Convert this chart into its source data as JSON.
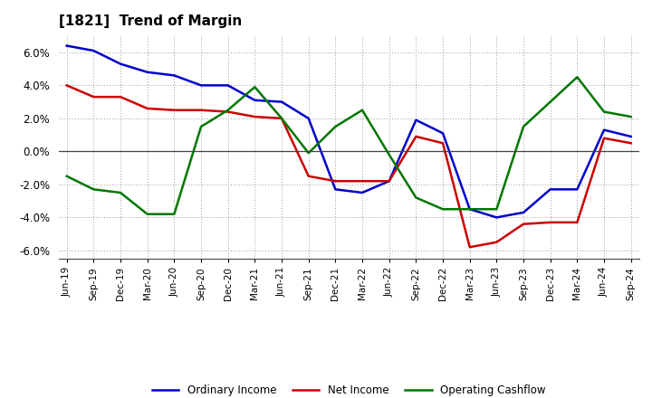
{
  "title": "[1821]  Trend of Margin",
  "labels": [
    "Jun-19",
    "Sep-19",
    "Dec-19",
    "Mar-20",
    "Jun-20",
    "Sep-20",
    "Dec-20",
    "Mar-21",
    "Jun-21",
    "Sep-21",
    "Dec-21",
    "Mar-22",
    "Jun-22",
    "Sep-22",
    "Dec-22",
    "Mar-23",
    "Jun-23",
    "Sep-23",
    "Dec-23",
    "Mar-24",
    "Jun-24",
    "Sep-24"
  ],
  "ordinary_income": [
    6.4,
    6.1,
    5.3,
    4.8,
    4.6,
    4.0,
    4.0,
    3.1,
    3.0,
    2.0,
    -2.3,
    -2.5,
    -1.8,
    1.9,
    1.1,
    -3.5,
    -4.0,
    -3.7,
    -2.3,
    -2.3,
    1.3,
    0.9
  ],
  "net_income": [
    4.0,
    3.3,
    3.3,
    2.6,
    2.5,
    2.5,
    2.4,
    2.1,
    2.0,
    -1.5,
    -1.8,
    -1.8,
    -1.8,
    0.9,
    0.5,
    -5.8,
    -5.5,
    -4.4,
    -4.3,
    -4.3,
    0.8,
    0.5
  ],
  "operating_cf": [
    -1.5,
    -2.3,
    -2.5,
    -3.8,
    -3.8,
    1.5,
    2.5,
    3.9,
    2.0,
    -0.1,
    1.5,
    2.5,
    -0.2,
    -2.8,
    -3.5,
    -3.5,
    -3.5,
    1.5,
    3.0,
    4.5,
    2.4,
    2.1
  ],
  "ordinary_color": "#0000cc",
  "net_color": "#cc0000",
  "cf_color": "#007700",
  "ylim": [
    -6.5,
    7.0
  ],
  "yticks": [
    -6.0,
    -4.0,
    -2.0,
    0.0,
    2.0,
    4.0,
    6.0
  ],
  "background_color": "#ffffff",
  "grid_color": "#999999",
  "linewidth": 1.8
}
